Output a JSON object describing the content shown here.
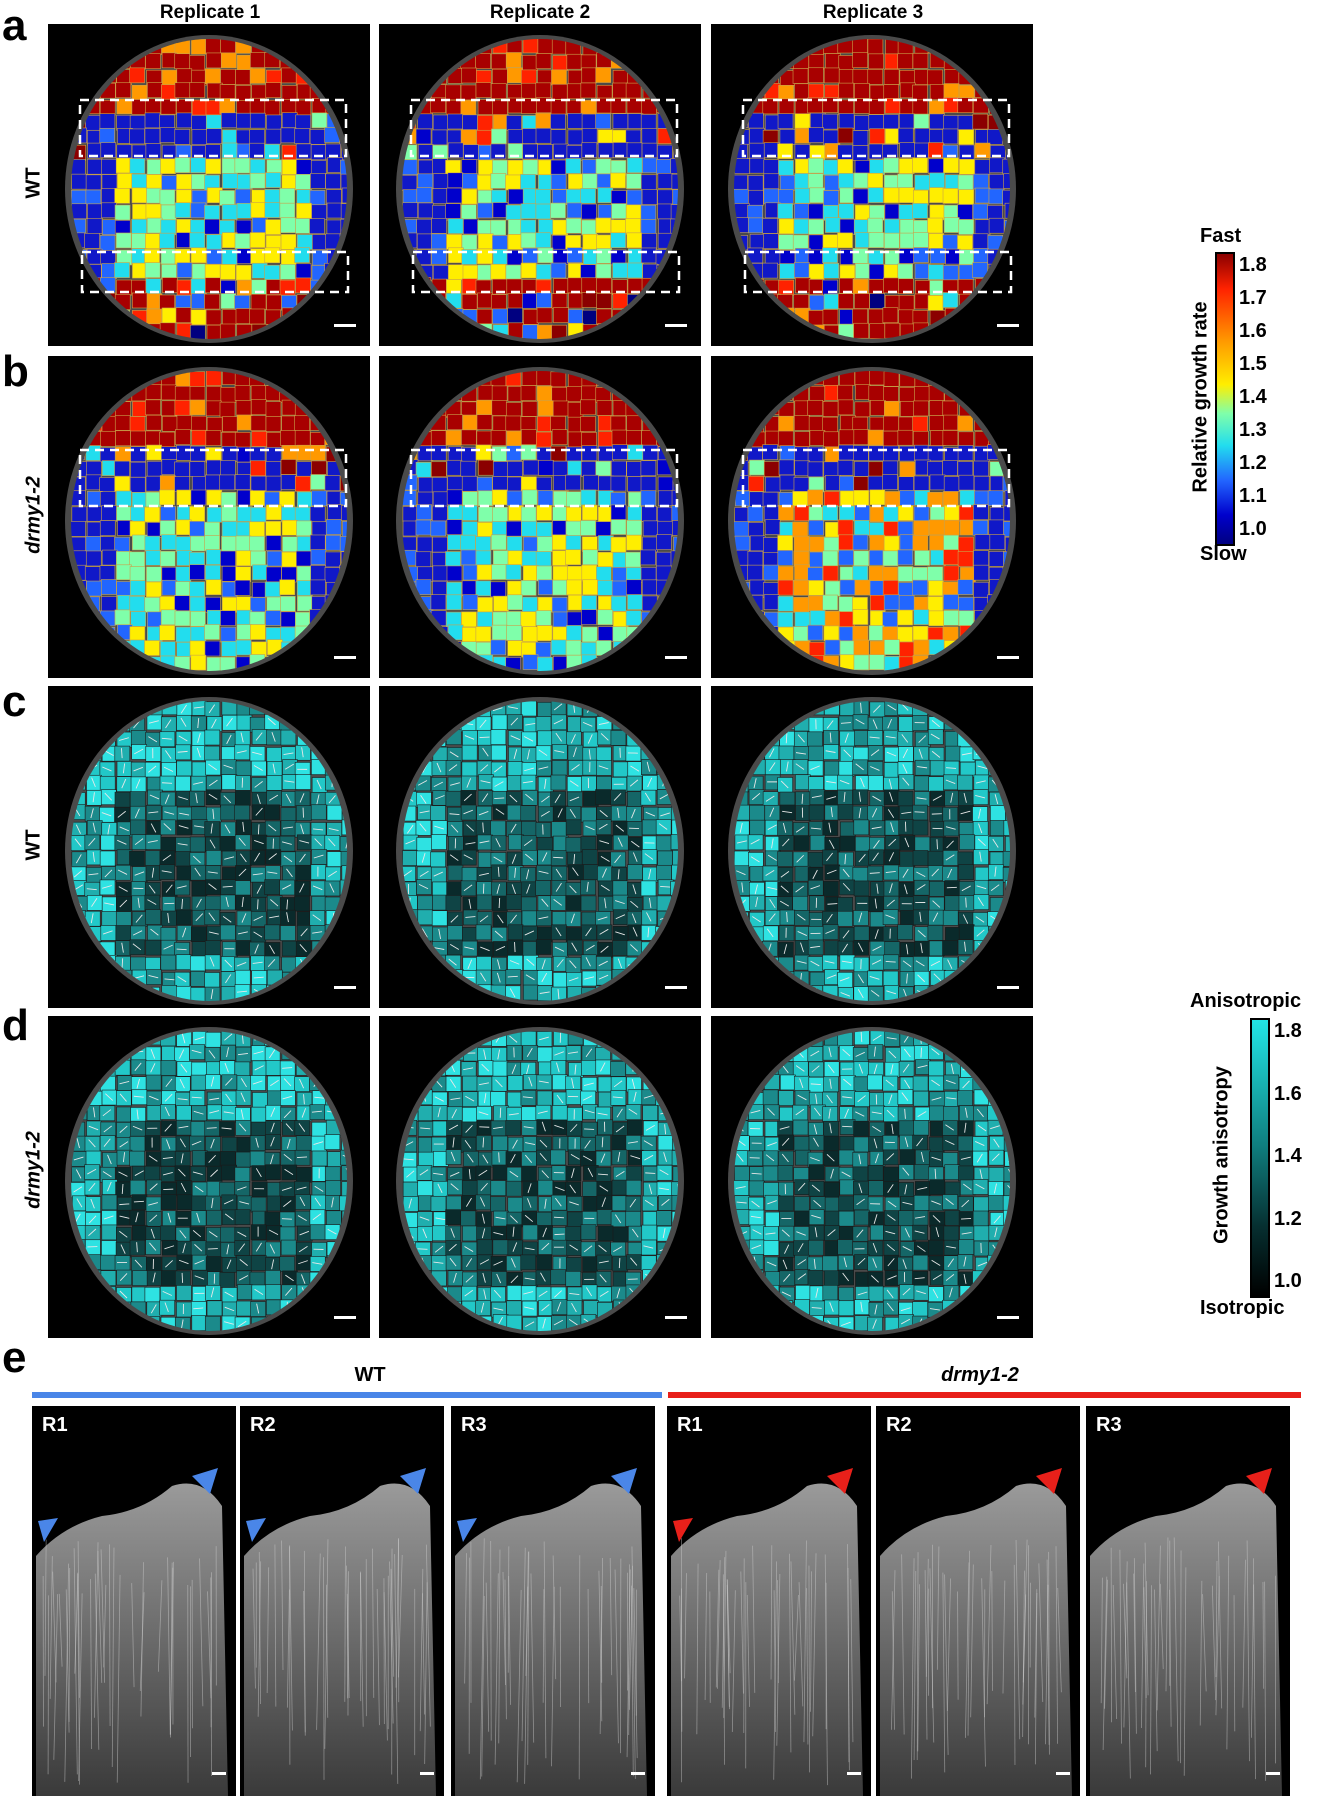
{
  "columns": [
    "Replicate 1",
    "Replicate 2",
    "Replicate 3"
  ],
  "panels": {
    "a": {
      "letter": "a",
      "genotype": "WT"
    },
    "b": {
      "letter": "b",
      "genotype": "drmy1-2"
    },
    "c": {
      "letter": "c",
      "genotype": "WT"
    },
    "d": {
      "letter": "d",
      "genotype": "drmy1-2"
    },
    "e": {
      "letter": "e"
    }
  },
  "growth_rate_bar": {
    "title": "Relative growth rate",
    "top_label": "Fast",
    "bottom_label": "Slow",
    "ticks": [
      "1.8",
      "1.7",
      "1.6",
      "1.5",
      "1.4",
      "1.3",
      "1.2",
      "1.1",
      "1.0"
    ],
    "colors": [
      "#8b0000",
      "#ff2200",
      "#ff9900",
      "#ffee00",
      "#7fffaa",
      "#22ddee",
      "#2266ff",
      "#0000cc",
      "#000080"
    ]
  },
  "anisotropy_bar": {
    "title": "Growth anisotropy",
    "top_label": "Anisotropic",
    "bottom_label": "Isotropic",
    "ticks": [
      "1.8",
      "1.6",
      "1.4",
      "1.2",
      "1.0"
    ],
    "colors": [
      "#22e6e6",
      "#000000"
    ]
  },
  "strip": {
    "wt_title": "WT",
    "mut_title": "drmy1-2",
    "wt_color": "#4a86e8",
    "mut_color": "#e8201a",
    "tiles": [
      "R1",
      "R2",
      "R3",
      "R1",
      "R2",
      "R3"
    ]
  }
}
